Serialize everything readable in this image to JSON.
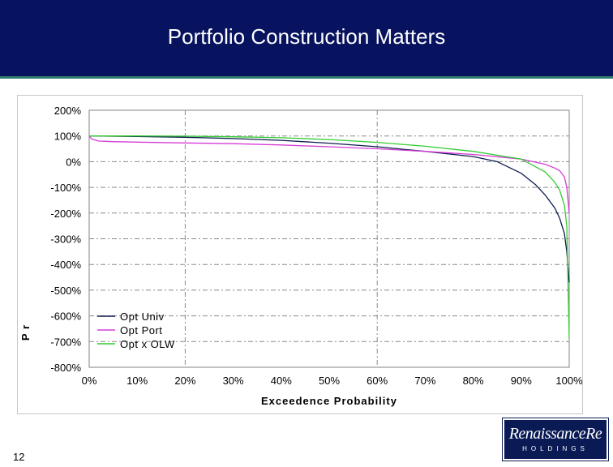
{
  "slide": {
    "title": "Portfolio Construction Matters",
    "page_number": "12"
  },
  "logo": {
    "name": "RenaissanceRe",
    "tagline": "HOLDINGS"
  },
  "colors": {
    "header_bg": "#07135f",
    "opt_univ": "#0b1a4f",
    "opt_port": "#d63bd6",
    "opt_x_olw": "#33cc33"
  },
  "chart_data": {
    "type": "line",
    "title": "",
    "xlabel": "Exceedence Probability",
    "ylabel": "P r",
    "xlim": [
      0,
      100
    ],
    "ylim": [
      -800,
      200
    ],
    "x_ticks": [
      0,
      10,
      20,
      30,
      40,
      50,
      60,
      70,
      80,
      90,
      100
    ],
    "x_tick_labels": [
      "0%",
      "10%",
      "20%",
      "30%",
      "40%",
      "50%",
      "60%",
      "70%",
      "80%",
      "90%",
      "100%"
    ],
    "y_ticks": [
      200,
      100,
      0,
      -100,
      -200,
      -300,
      -400,
      -500,
      -600,
      -700,
      -800
    ],
    "y_tick_labels": [
      "200%",
      "100%",
      "0%",
      "-100%",
      "-200%",
      "-300%",
      "-400%",
      "-500%",
      "-600%",
      "-700%",
      "-800%"
    ],
    "grid": true,
    "legend_position": "bottom-left",
    "series": [
      {
        "name": "Opt Univ",
        "x": [
          0,
          10,
          20,
          30,
          40,
          50,
          60,
          70,
          80,
          85,
          90,
          93,
          95,
          97,
          98,
          99,
          99.5,
          100
        ],
        "y": [
          100,
          98,
          95,
          90,
          83,
          72,
          58,
          40,
          20,
          0,
          -45,
          -90,
          -130,
          -180,
          -220,
          -280,
          -350,
          -470
        ]
      },
      {
        "name": "Opt Port",
        "x": [
          0,
          0.5,
          2,
          5,
          10,
          20,
          30,
          40,
          50,
          60,
          70,
          80,
          90,
          95,
          97,
          98,
          99,
          99.5,
          100
        ],
        "y": [
          100,
          88,
          80,
          78,
          76,
          73,
          70,
          65,
          58,
          50,
          40,
          28,
          10,
          -10,
          -25,
          -35,
          -60,
          -100,
          -200
        ]
      },
      {
        "name": "Opt x OLW",
        "x": [
          0,
          10,
          20,
          30,
          40,
          50,
          60,
          70,
          80,
          90,
          95,
          97,
          98,
          99,
          99.5,
          100
        ],
        "y": [
          100,
          100,
          99,
          97,
          93,
          86,
          75,
          60,
          40,
          10,
          -40,
          -80,
          -110,
          -170,
          -250,
          -690
        ]
      }
    ]
  }
}
